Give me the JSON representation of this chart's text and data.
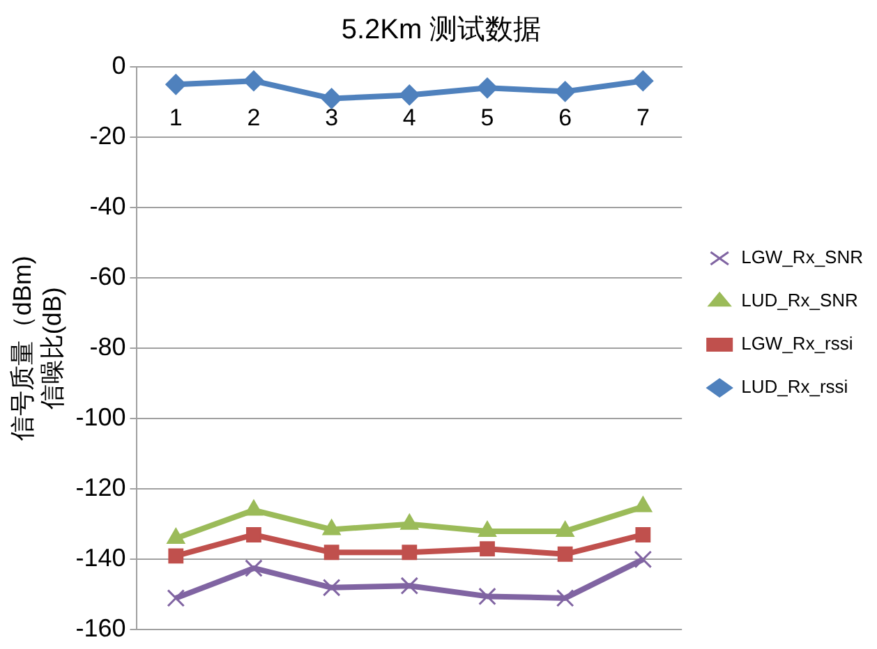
{
  "chart_data": {
    "type": "line",
    "title": "5.2Km 测试数据",
    "ylabel": "信号质量（dBm)\n信噪比(dB)",
    "categories": [
      "1",
      "2",
      "3",
      "4",
      "5",
      "6",
      "7"
    ],
    "ylim": [
      -160,
      0
    ],
    "yticks": [
      -160,
      -140,
      -120,
      -100,
      -80,
      -60,
      -40,
      -20,
      0
    ],
    "grid": "y",
    "legend": "right",
    "series": [
      {
        "name": "LGW_Rx_SNR",
        "color": "#8064a2",
        "marker": "cross",
        "values": [
          -151,
          -142.5,
          -148,
          -147.5,
          -150.5,
          -151,
          -140
        ]
      },
      {
        "name": "LUD_Rx_SNR",
        "color": "#9bbb59",
        "marker": "triangle",
        "values": [
          -134,
          -126,
          -131.5,
          -130,
          -132,
          -132,
          -125
        ]
      },
      {
        "name": "LGW_Rx_rssi",
        "color": "#c0504d",
        "marker": "square",
        "values": [
          -139,
          -133,
          -138,
          -138,
          -137,
          -138.5,
          -133
        ]
      },
      {
        "name": "LUD_Rx_rssi",
        "color": "#4f81bd",
        "marker": "diamond",
        "values": [
          -5,
          -4,
          -9,
          -8,
          -6,
          -7,
          -4
        ]
      }
    ]
  }
}
